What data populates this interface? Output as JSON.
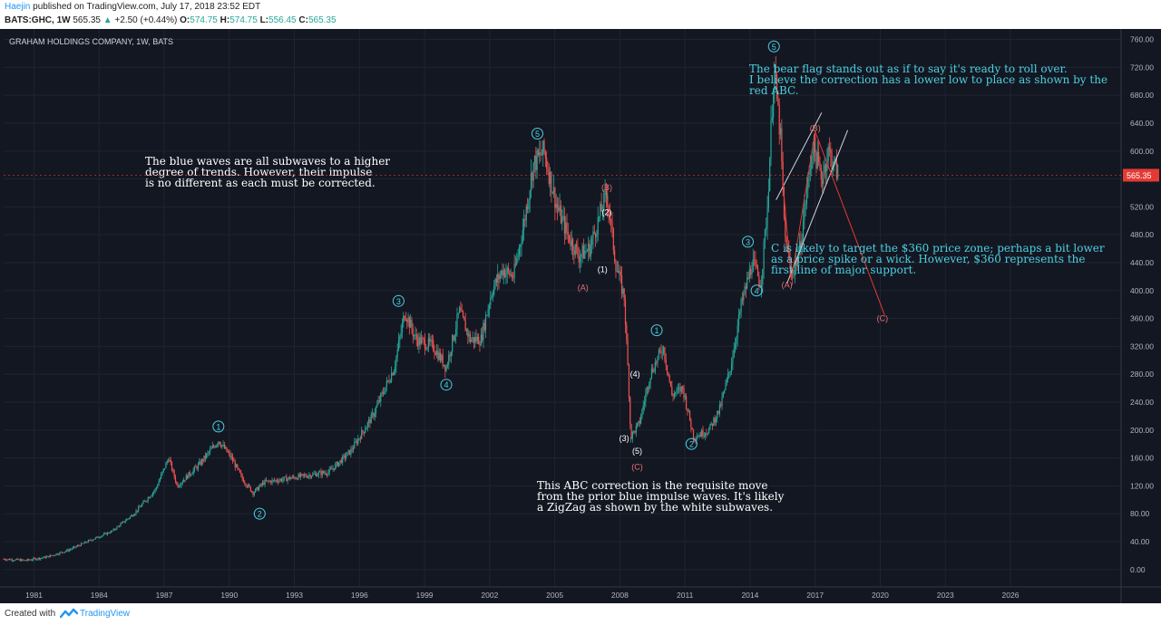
{
  "header": {
    "author": "Haejin",
    "published_text": "published on TradingView.com, July 17, 2018 23:52 EDT",
    "symbol": "BATS:GHC, 1W",
    "last": "565.35",
    "change": "+2.50 (+0.44%)",
    "o_label": "O:",
    "o_value": "574.75",
    "h_label": "H:",
    "h_value": "574.75",
    "l_label": "L:",
    "l_value": "556.45",
    "c_label": "C:",
    "c_value": "565.35"
  },
  "footer": {
    "created_with": "Created with",
    "brand": "TradingView"
  },
  "colors": {
    "background": "#131722",
    "grid": "#1f2430",
    "candle_up": "#26a69a",
    "candle_down": "#ef5350",
    "wave_blue": "#4dd0e1",
    "wave_red": "#e57373",
    "wave_white": "#ffffff",
    "annotation_cyan": "#4dd0e1",
    "price_marker": "#e53935"
  },
  "chart_data": {
    "type": "candlestick",
    "title": "GRAHAM HOLDINGS COMPANY, 1W, BATS",
    "x_ticks": [
      "1981",
      "1984",
      "1987",
      "1990",
      "1993",
      "1996",
      "1999",
      "2002",
      "2005",
      "2008",
      "2011",
      "2014",
      "2017",
      "2020",
      "2023",
      "2026"
    ],
    "x_range": [
      1980.0,
      2031.5
    ],
    "y_ticks": [
      "760.00",
      "720.00",
      "680.00",
      "640.00",
      "600.00",
      "560.00",
      "520.00",
      "480.00",
      "440.00",
      "400.00",
      "360.00",
      "320.00",
      "280.00",
      "240.00",
      "200.00",
      "160.00",
      "120.00",
      "80.00",
      "40.00",
      "0.00"
    ],
    "y_range": [
      -25,
      775
    ],
    "last_price_label": "565.35",
    "last_price": 565.35,
    "price_path": [
      [
        1980.0,
        15
      ],
      [
        1981.0,
        13
      ],
      [
        1982.0,
        18
      ],
      [
        1983.0,
        28
      ],
      [
        1984.0,
        42
      ],
      [
        1985.0,
        55
      ],
      [
        1986.0,
        80
      ],
      [
        1987.0,
        115
      ],
      [
        1987.6,
        160
      ],
      [
        1988.0,
        120
      ],
      [
        1989.0,
        150
      ],
      [
        1989.9,
        185
      ],
      [
        1990.5,
        160
      ],
      [
        1991.0,
        130
      ],
      [
        1991.5,
        110
      ],
      [
        1992.0,
        125
      ],
      [
        1993.0,
        130
      ],
      [
        1994.0,
        135
      ],
      [
        1995.0,
        140
      ],
      [
        1996.0,
        170
      ],
      [
        1997.0,
        220
      ],
      [
        1998.0,
        290
      ],
      [
        1998.5,
        370
      ],
      [
        1999.0,
        330
      ],
      [
        1999.8,
        320
      ],
      [
        2000.4,
        290
      ],
      [
        2001.0,
        370
      ],
      [
        2001.5,
        330
      ],
      [
        2002.0,
        330
      ],
      [
        2002.5,
        400
      ],
      [
        2003.0,
        430
      ],
      [
        2003.5,
        420
      ],
      [
        2004.0,
        500
      ],
      [
        2004.4,
        580
      ],
      [
        2004.9,
        600
      ],
      [
        2005.5,
        520
      ],
      [
        2006.0,
        480
      ],
      [
        2006.5,
        450
      ],
      [
        2007.0,
        460
      ],
      [
        2007.8,
        540
      ],
      [
        2008.2,
        440
      ],
      [
        2008.6,
        390
      ],
      [
        2008.8,
        270
      ],
      [
        2008.9,
        190
      ],
      [
        2009.3,
        210
      ],
      [
        2009.8,
        280
      ],
      [
        2010.4,
        320
      ],
      [
        2010.8,
        250
      ],
      [
        2011.3,
        260
      ],
      [
        2011.8,
        190
      ],
      [
        2012.5,
        200
      ],
      [
        2013.0,
        230
      ],
      [
        2013.5,
        290
      ],
      [
        2014.0,
        380
      ],
      [
        2014.5,
        440
      ],
      [
        2014.9,
        410
      ],
      [
        2015.2,
        520
      ],
      [
        2015.5,
        720
      ],
      [
        2015.8,
        620
      ],
      [
        2016.0,
        480
      ],
      [
        2016.3,
        420
      ],
      [
        2016.7,
        460
      ],
      [
        2017.0,
        540
      ],
      [
        2017.3,
        610
      ],
      [
        2017.7,
        560
      ],
      [
        2018.0,
        600
      ],
      [
        2018.5,
        565
      ]
    ],
    "wave_labels": [
      {
        "text": "1",
        "x": 1989.9,
        "y": 205,
        "color": "blue",
        "circled": true
      },
      {
        "text": "2",
        "x": 1991.8,
        "y": 80,
        "color": "blue",
        "circled": true
      },
      {
        "text": "3",
        "x": 1998.2,
        "y": 385,
        "color": "blue",
        "circled": true
      },
      {
        "text": "4",
        "x": 2000.4,
        "y": 265,
        "color": "blue",
        "circled": true
      },
      {
        "text": "5",
        "x": 2004.6,
        "y": 625,
        "color": "blue",
        "circled": true
      },
      {
        "text": "(B)",
        "x": 2007.8,
        "y": 548,
        "color": "red",
        "circled": false
      },
      {
        "text": "(2)",
        "x": 2007.8,
        "y": 512,
        "color": "white",
        "circled": false
      },
      {
        "text": "(1)",
        "x": 2007.6,
        "y": 430,
        "color": "white",
        "circled": false
      },
      {
        "text": "(A)",
        "x": 2006.7,
        "y": 404,
        "color": "red",
        "circled": false
      },
      {
        "text": "(4)",
        "x": 2009.1,
        "y": 280,
        "color": "white",
        "circled": false
      },
      {
        "text": "(3)",
        "x": 2008.6,
        "y": 188,
        "color": "white",
        "circled": false
      },
      {
        "text": "(5)",
        "x": 2009.2,
        "y": 170,
        "color": "white",
        "circled": false
      },
      {
        "text": "(C)",
        "x": 2009.2,
        "y": 147,
        "color": "red",
        "circled": false
      },
      {
        "text": "1",
        "x": 2010.1,
        "y": 343,
        "color": "blue",
        "circled": true
      },
      {
        "text": "2",
        "x": 2011.7,
        "y": 180,
        "color": "blue",
        "circled": true
      },
      {
        "text": "3",
        "x": 2014.3,
        "y": 470,
        "color": "blue",
        "circled": true
      },
      {
        "text": "4",
        "x": 2014.7,
        "y": 400,
        "color": "blue",
        "circled": true
      },
      {
        "text": "5",
        "x": 2015.5,
        "y": 750,
        "color": "blue",
        "circled": true
      },
      {
        "text": "(B)",
        "x": 2017.4,
        "y": 633,
        "color": "red",
        "circled": false
      },
      {
        "text": "(A)",
        "x": 2016.1,
        "y": 408,
        "color": "red",
        "circled": false
      },
      {
        "text": "(C)",
        "x": 2020.5,
        "y": 360,
        "color": "red",
        "circled": false
      }
    ],
    "annotations": [
      {
        "id": "bear-flag",
        "color": "cyan",
        "lines": [
          "The bear flag stands out as if to say it's ready to roll over.",
          "I believe the correction has a lower low to place as shown by the",
          "red ABC."
        ]
      },
      {
        "id": "c-target",
        "color": "cyan",
        "lines": [
          "C is likely to target the $360 price zone; perhaps a bit lower",
          "as a price spike or a wick. However, $360 represents the",
          "first line of major support."
        ]
      },
      {
        "id": "blue-waves",
        "color": "white",
        "lines": [
          "The blue waves are all subwaves to a higher",
          "degree of trends. However, their impulse",
          "is no different as each must be corrected."
        ]
      },
      {
        "id": "abc-correction",
        "color": "white",
        "lines": [
          "This ABC correction is the requisite move",
          "from the prior blue impulse waves. It's likely",
          "a ZigZag as shown by the white subwaves."
        ]
      }
    ]
  }
}
